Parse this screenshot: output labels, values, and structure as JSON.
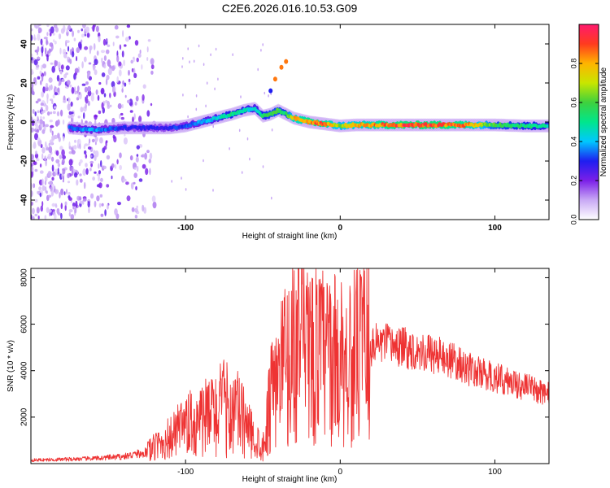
{
  "title": "C2E6.2026.016.10.53.G09",
  "chart_data": [
    {
      "type": "heatmap",
      "xlabel": "Height of straight line (km)",
      "ylabel": "Frequency (Hz)",
      "xlim": [
        -200,
        135
      ],
      "ylim": [
        -50,
        50
      ],
      "xticks": [
        -100,
        0,
        100
      ],
      "yticks": [
        -40,
        -20,
        0,
        20,
        40
      ],
      "colorbar": {
        "label": "Normalized spectral amplitude",
        "range": [
          0,
          1
        ],
        "ticks": [
          "0.0",
          "0.2",
          "0.4",
          "0.6",
          "0.8"
        ],
        "colors": [
          "#ffffff",
          "#c9a9f5",
          "#7b1fe8",
          "#1e1ef0",
          "#00c8ff",
          "#00e68c",
          "#3ed13e",
          "#c8e600",
          "#ffb400",
          "#ff3b1e",
          "#ff1a6e"
        ]
      },
      "ridge": {
        "x": [
          -175,
          -160,
          -150,
          -140,
          -125,
          -110,
          -100,
          -90,
          -80,
          -70,
          -62,
          -55,
          -50,
          -45,
          -40,
          -35,
          -30,
          -20,
          -10,
          0,
          10,
          20,
          40,
          60,
          80,
          100,
          120,
          135
        ],
        "y": [
          -3,
          -4,
          -3.5,
          -3,
          -3,
          -3,
          -2,
          0,
          2,
          4,
          6,
          7,
          3,
          4,
          6,
          4,
          2,
          0,
          -1,
          -2,
          -1.5,
          -1.5,
          -1.5,
          -1.5,
          -1.5,
          -1.5,
          -2,
          -2
        ],
        "amplitude": [
          0.35,
          0.4,
          0.35,
          0.3,
          0.3,
          0.3,
          0.35,
          0.4,
          0.45,
          0.55,
          0.5,
          0.45,
          0.55,
          0.6,
          0.6,
          0.55,
          0.8,
          0.9,
          0.9,
          0.7,
          0.8,
          0.85,
          0.95,
          0.95,
          0.9,
          0.6,
          0.55,
          0.5
        ]
      }
    },
    {
      "type": "line",
      "xlabel": "Height of straight line (km)",
      "ylabel": "SNR (10 * v/v)",
      "xlim": [
        -200,
        135
      ],
      "ylim": [
        0,
        8400
      ],
      "xticks": [
        -100,
        0,
        100
      ],
      "yticks": [
        2000,
        4000,
        6000,
        8000
      ],
      "line_color": "#ee3333",
      "envelope": {
        "x": [
          -200,
          -180,
          -160,
          -140,
          -125,
          -115,
          -105,
          -95,
          -85,
          -75,
          -65,
          -58,
          -50,
          -45,
          -40,
          -35,
          -30,
          -25,
          -15,
          -5,
          5,
          15,
          25,
          40,
          55,
          70,
          85,
          100,
          115,
          135
        ],
        "y": [
          150,
          180,
          220,
          300,
          500,
          900,
          1300,
          1700,
          2000,
          2400,
          2100,
          1300,
          700,
          2800,
          3600,
          4400,
          4700,
          4800,
          4700,
          4500,
          4400,
          4800,
          5200,
          5000,
          4800,
          4500,
          4000,
          3700,
          3400,
          3000
        ]
      },
      "peak": {
        "x": -27,
        "y": 8400
      }
    }
  ]
}
